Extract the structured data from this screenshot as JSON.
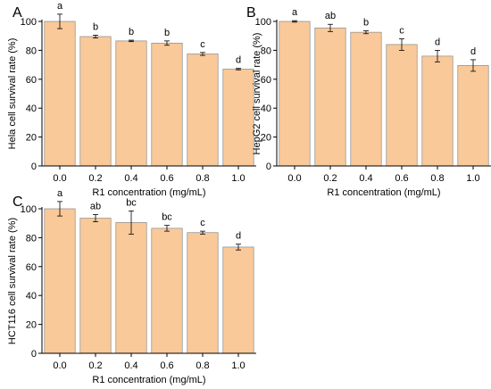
{
  "colors": {
    "bar_fill": "#F9C999",
    "bar_stroke": "#8a8a8a",
    "axis": "#000000",
    "error_bar": "#000000"
  },
  "chart_data": [
    {
      "type": "bar",
      "panel_label": "A",
      "categories": [
        "0.0",
        "0.2",
        "0.4",
        "0.6",
        "0.8",
        "1.0"
      ],
      "values": [
        100,
        89.5,
        86.5,
        85,
        77.5,
        67
      ],
      "errors": [
        5,
        1,
        0.5,
        1.5,
        1,
        0.5
      ],
      "significance": [
        "a",
        "b",
        "b",
        "b",
        "c",
        "d"
      ],
      "xlabel": "R1 concentration (mg/mL)",
      "ylabel": "Hela cell survival rate (%)",
      "ylim": [
        0,
        100
      ],
      "yticks": [
        0,
        20,
        40,
        60,
        80,
        100
      ],
      "grid": false
    },
    {
      "type": "bar",
      "panel_label": "B",
      "categories": [
        "0.0",
        "0.2",
        "0.4",
        "0.6",
        "0.8",
        "1.0"
      ],
      "values": [
        100,
        95.5,
        92.5,
        84,
        76,
        69.5
      ],
      "errors": [
        0.5,
        2.5,
        1,
        4,
        4,
        4
      ],
      "significance": [
        "a",
        "ab",
        "b",
        "c",
        "d",
        "d"
      ],
      "xlabel": "R1 concentration (mg/mL)",
      "ylabel": "HepG2 cell survival rate (%)",
      "ylim": [
        0,
        100
      ],
      "yticks": [
        0,
        20,
        40,
        60,
        80,
        100
      ],
      "grid": false
    },
    {
      "type": "bar",
      "panel_label": "C",
      "categories": [
        "0.0",
        "0.2",
        "0.4",
        "0.6",
        "0.8",
        "1.0"
      ],
      "values": [
        100,
        93.5,
        90.5,
        86.5,
        83.5,
        73.5
      ],
      "errors": [
        5,
        2.5,
        8,
        2,
        1,
        2
      ],
      "significance": [
        "a",
        "ab",
        "bc",
        "bc",
        "c",
        "d"
      ],
      "xlabel": "R1 concentration (mg/mL)",
      "ylabel": "HCT116 cell survival rate (%)",
      "ylim": [
        0,
        100
      ],
      "yticks": [
        0,
        20,
        40,
        60,
        80,
        100
      ],
      "grid": false
    }
  ]
}
